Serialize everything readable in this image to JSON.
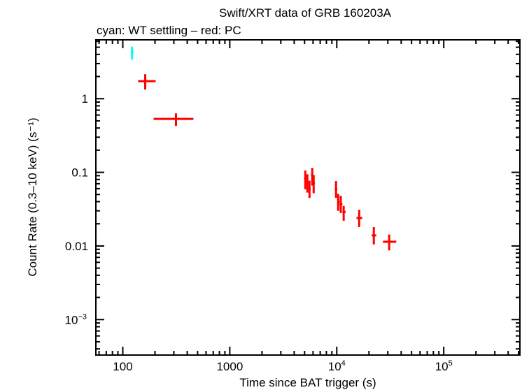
{
  "chart_data": {
    "type": "scatter",
    "title": "Swift/XRT data of GRB 160203A",
    "subtitle": "cyan: WT settling – red: PC",
    "xlabel": "Time since BAT trigger (s)",
    "ylabel": "Count Rate (0.3–10 keV) (s⁻¹)",
    "xscale": "log",
    "yscale": "log",
    "xlim": [
      56,
      515000
    ],
    "ylim": [
      0.00033,
      6.3
    ],
    "grid": false,
    "x_ticks": [
      {
        "value": 100,
        "label": "100"
      },
      {
        "value": 1000,
        "label": "1000"
      },
      {
        "value": 10000,
        "label": "10",
        "sup": "4"
      },
      {
        "value": 100000,
        "label": "10",
        "sup": "5"
      }
    ],
    "y_ticks": [
      {
        "value": 1,
        "label": "1"
      },
      {
        "value": 0.1,
        "label": "0.1"
      },
      {
        "value": 0.01,
        "label": "0.01"
      },
      {
        "value": 0.001,
        "label": "10",
        "sup": "−3"
      }
    ],
    "series": [
      {
        "mode": "WT settling",
        "color": "#00ffff",
        "points": [
          {
            "x": 122,
            "xlo": 119,
            "xhi": 126,
            "y": 4.3,
            "ylo": 3.4,
            "yhi": 5.1
          }
        ]
      },
      {
        "mode": "PC",
        "color": "#ff0000",
        "points": [
          {
            "x": 162,
            "xlo": 139,
            "xhi": 203,
            "y": 1.73,
            "ylo": 1.33,
            "yhi": 2.15
          },
          {
            "x": 314,
            "xlo": 194,
            "xhi": 457,
            "y": 0.531,
            "ylo": 0.427,
            "yhi": 0.632
          },
          {
            "x": 5080,
            "xlo": 4950,
            "xhi": 5200,
            "y": 0.083,
            "ylo": 0.059,
            "yhi": 0.106
          },
          {
            "x": 5310,
            "xlo": 5200,
            "xhi": 5430,
            "y": 0.071,
            "ylo": 0.053,
            "yhi": 0.094
          },
          {
            "x": 5560,
            "xlo": 5430,
            "xhi": 5700,
            "y": 0.06,
            "ylo": 0.045,
            "yhi": 0.077
          },
          {
            "x": 5900,
            "xlo": 5750,
            "xhi": 6000,
            "y": 0.091,
            "ylo": 0.066,
            "yhi": 0.115
          },
          {
            "x": 6080,
            "xlo": 6000,
            "xhi": 6250,
            "y": 0.071,
            "ylo": 0.052,
            "yhi": 0.092
          },
          {
            "x": 9840,
            "xlo": 9600,
            "xhi": 10100,
            "y": 0.059,
            "ylo": 0.045,
            "yhi": 0.076
          },
          {
            "x": 10300,
            "xlo": 10100,
            "xhi": 10600,
            "y": 0.04,
            "ylo": 0.03,
            "yhi": 0.051
          },
          {
            "x": 10900,
            "xlo": 10600,
            "xhi": 11300,
            "y": 0.037,
            "ylo": 0.028,
            "yhi": 0.048
          },
          {
            "x": 11600,
            "xlo": 11300,
            "xhi": 12100,
            "y": 0.029,
            "ylo": 0.022,
            "yhi": 0.035
          },
          {
            "x": 16200,
            "xlo": 15300,
            "xhi": 17300,
            "y": 0.024,
            "ylo": 0.018,
            "yhi": 0.031
          },
          {
            "x": 22200,
            "xlo": 21200,
            "xhi": 23400,
            "y": 0.0139,
            "ylo": 0.0105,
            "yhi": 0.018
          },
          {
            "x": 30900,
            "xlo": 27000,
            "xhi": 36000,
            "y": 0.0114,
            "ylo": 0.0087,
            "yhi": 0.0143
          }
        ]
      }
    ]
  }
}
